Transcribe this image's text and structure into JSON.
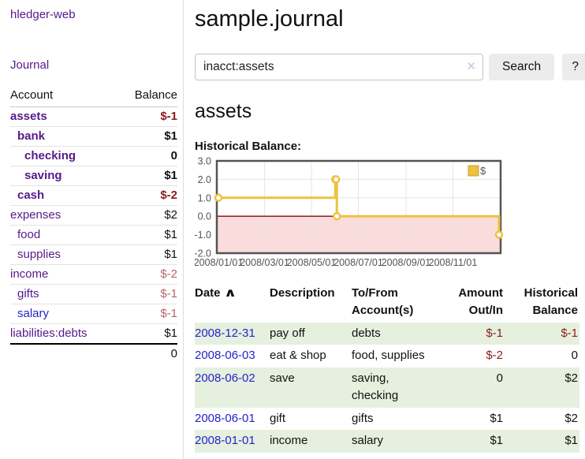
{
  "sidebar": {
    "app_title": "hledger-web",
    "journal_link": "Journal",
    "accounts_table": {
      "headers": {
        "account": "Account",
        "balance": "Balance"
      },
      "rows": [
        {
          "name": "assets",
          "balance": "$-1",
          "indent": 0,
          "bold": true,
          "name_color": "purple",
          "tone": "neg-strong"
        },
        {
          "name": "bank",
          "balance": "$1",
          "indent": 1,
          "bold": true,
          "name_color": "purple",
          "tone": "pos"
        },
        {
          "name": "checking",
          "balance": "0",
          "indent": 2,
          "bold": true,
          "name_color": "purple",
          "tone": "pos"
        },
        {
          "name": "saving",
          "balance": "$1",
          "indent": 2,
          "bold": true,
          "name_color": "purple",
          "tone": "pos"
        },
        {
          "name": "cash",
          "balance": "$-2",
          "indent": 1,
          "bold": true,
          "name_color": "purple",
          "tone": "neg-strong"
        },
        {
          "name": "expenses",
          "balance": "$2",
          "indent": 0,
          "bold": false,
          "name_color": "purple",
          "tone": "pos"
        },
        {
          "name": "food",
          "balance": "$1",
          "indent": 1,
          "bold": false,
          "name_color": "purple",
          "tone": "pos"
        },
        {
          "name": "supplies",
          "balance": "$1",
          "indent": 1,
          "bold": false,
          "name_color": "purple",
          "tone": "pos"
        },
        {
          "name": "income",
          "balance": "$-2",
          "indent": 0,
          "bold": false,
          "name_color": "purple",
          "tone": "neg-soft"
        },
        {
          "name": "gifts",
          "balance": "$-1",
          "indent": 1,
          "bold": false,
          "name_color": "purple",
          "tone": "neg-soft"
        },
        {
          "name": "salary",
          "balance": "$-1",
          "indent": 1,
          "bold": false,
          "name_color": "blue",
          "tone": "neg-soft"
        },
        {
          "name": "liabilities:debts",
          "balance": "$1",
          "indent": 0,
          "bold": false,
          "name_color": "purple",
          "tone": "pos"
        }
      ],
      "total": "0"
    }
  },
  "main": {
    "title": "sample.journal",
    "search": {
      "value": "inacct:assets",
      "clear_icon": "✕",
      "button_label": "Search",
      "help_label": "?"
    },
    "account_heading": "assets",
    "chart_label": "Historical Balance:",
    "register": {
      "headers": {
        "date": "Date",
        "sort_icon": "∧",
        "description": "Description",
        "tofrom": "To/From Account(s)",
        "amount": "Amount Out/In",
        "historical": "Historical Balance"
      },
      "rows": [
        {
          "date": "2008-12-31",
          "description": "pay off",
          "tofrom": "debts",
          "amount": "$-1",
          "amount_tone": "neg",
          "historical": "$-1",
          "historical_tone": "neg",
          "shade": true
        },
        {
          "date": "2008-06-03",
          "description": "eat & shop",
          "tofrom": "food, supplies",
          "amount": "$-2",
          "amount_tone": "neg",
          "historical": "0",
          "historical_tone": "pos",
          "shade": false
        },
        {
          "date": "2008-06-02",
          "description": "save",
          "tofrom": "saving,\nchecking",
          "amount": "0",
          "amount_tone": "pos",
          "historical": "$2",
          "historical_tone": "pos",
          "shade": true
        },
        {
          "date": "2008-06-01",
          "description": "gift",
          "tofrom": "gifts",
          "amount": "$1",
          "amount_tone": "pos",
          "historical": "$2",
          "historical_tone": "pos",
          "shade": false
        },
        {
          "date": "2008-01-01",
          "description": "income",
          "tofrom": "salary",
          "amount": "$1",
          "amount_tone": "pos",
          "historical": "$1",
          "historical_tone": "pos",
          "shade": true
        }
      ]
    }
  },
  "chart_data": {
    "type": "line",
    "title": "Historical Balance",
    "step": true,
    "series": [
      {
        "name": "$",
        "color": "#edc240",
        "points": [
          [
            "2008-01-01",
            1
          ],
          [
            "2008-06-01",
            2
          ],
          [
            "2008-06-02",
            2
          ],
          [
            "2008-06-03",
            0
          ],
          [
            "2008-12-31",
            -1
          ]
        ]
      }
    ],
    "x_start": "2008-01-01",
    "x_end": "2008-12-31",
    "x_ticks": [
      "2008/01/01",
      "2008/03/01",
      "2008/05/01",
      "2008/07/01",
      "2008/09/01",
      "2008/11/01"
    ],
    "y_ticks": [
      3.0,
      2.0,
      1.0,
      0.0,
      -1.0,
      -2.0
    ],
    "ylim": [
      -2,
      3
    ],
    "grid": true,
    "legend": "$",
    "legend_position": "top-right",
    "colors": {
      "line": "#edc240",
      "marker_fill": "#ffffff",
      "negative_region": "#fbdcdc",
      "zero_line": "#7d0d0d",
      "gridline": "#e5e5e5",
      "plot_border": "#545454",
      "tick_text": "#545454",
      "legend_square_border": "#c5a139"
    }
  },
  "colors": {
    "link_purple": "#551a8b",
    "link_blue": "#2424cc",
    "negative_strong": "#8b1c1c",
    "negative_soft": "#b5646c",
    "row_stripe_green": "#e5f0de",
    "button_bg": "#ececec"
  }
}
